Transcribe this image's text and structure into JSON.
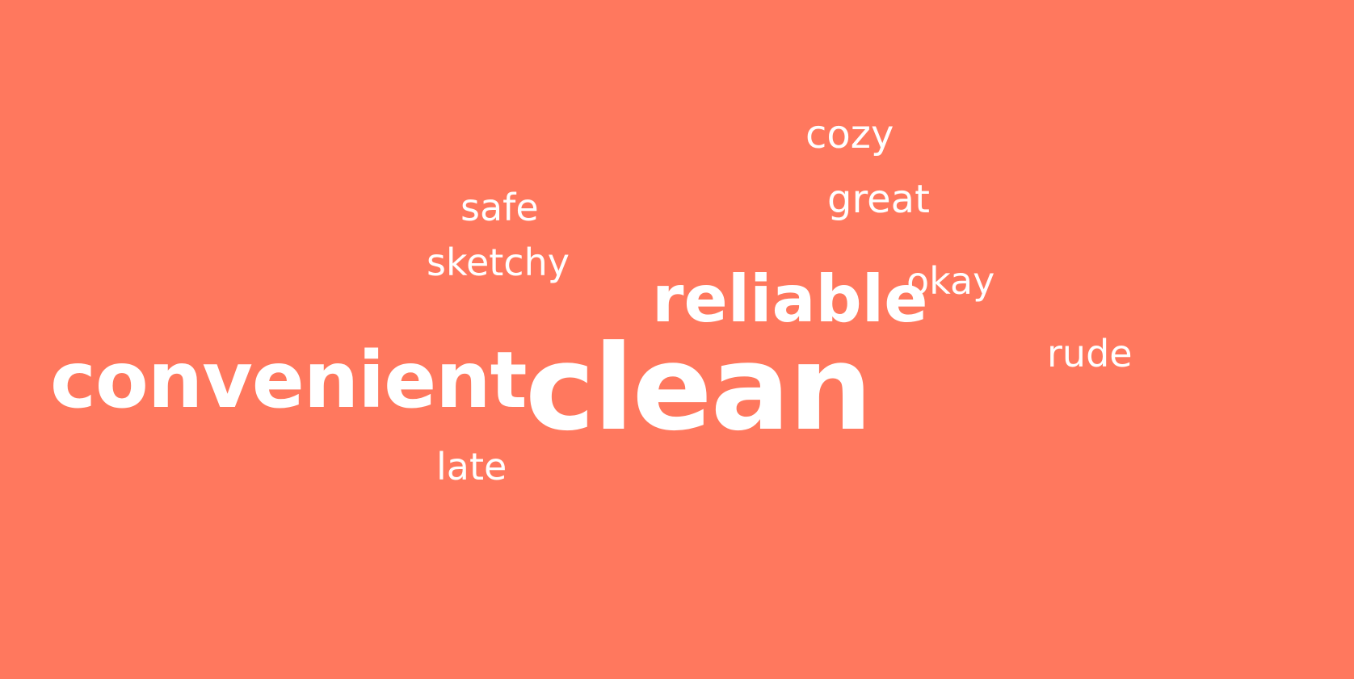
{
  "background_color": "#ff785e",
  "text_color": "#ffffff",
  "words": {
    "clean": "clean",
    "convenient": "convenient",
    "reliable": "reliable",
    "cozy": "cozy",
    "great": "great",
    "safe": "safe",
    "sketchy": "sketchy",
    "okay": "okay",
    "rude": "rude",
    "late": "late"
  }
}
